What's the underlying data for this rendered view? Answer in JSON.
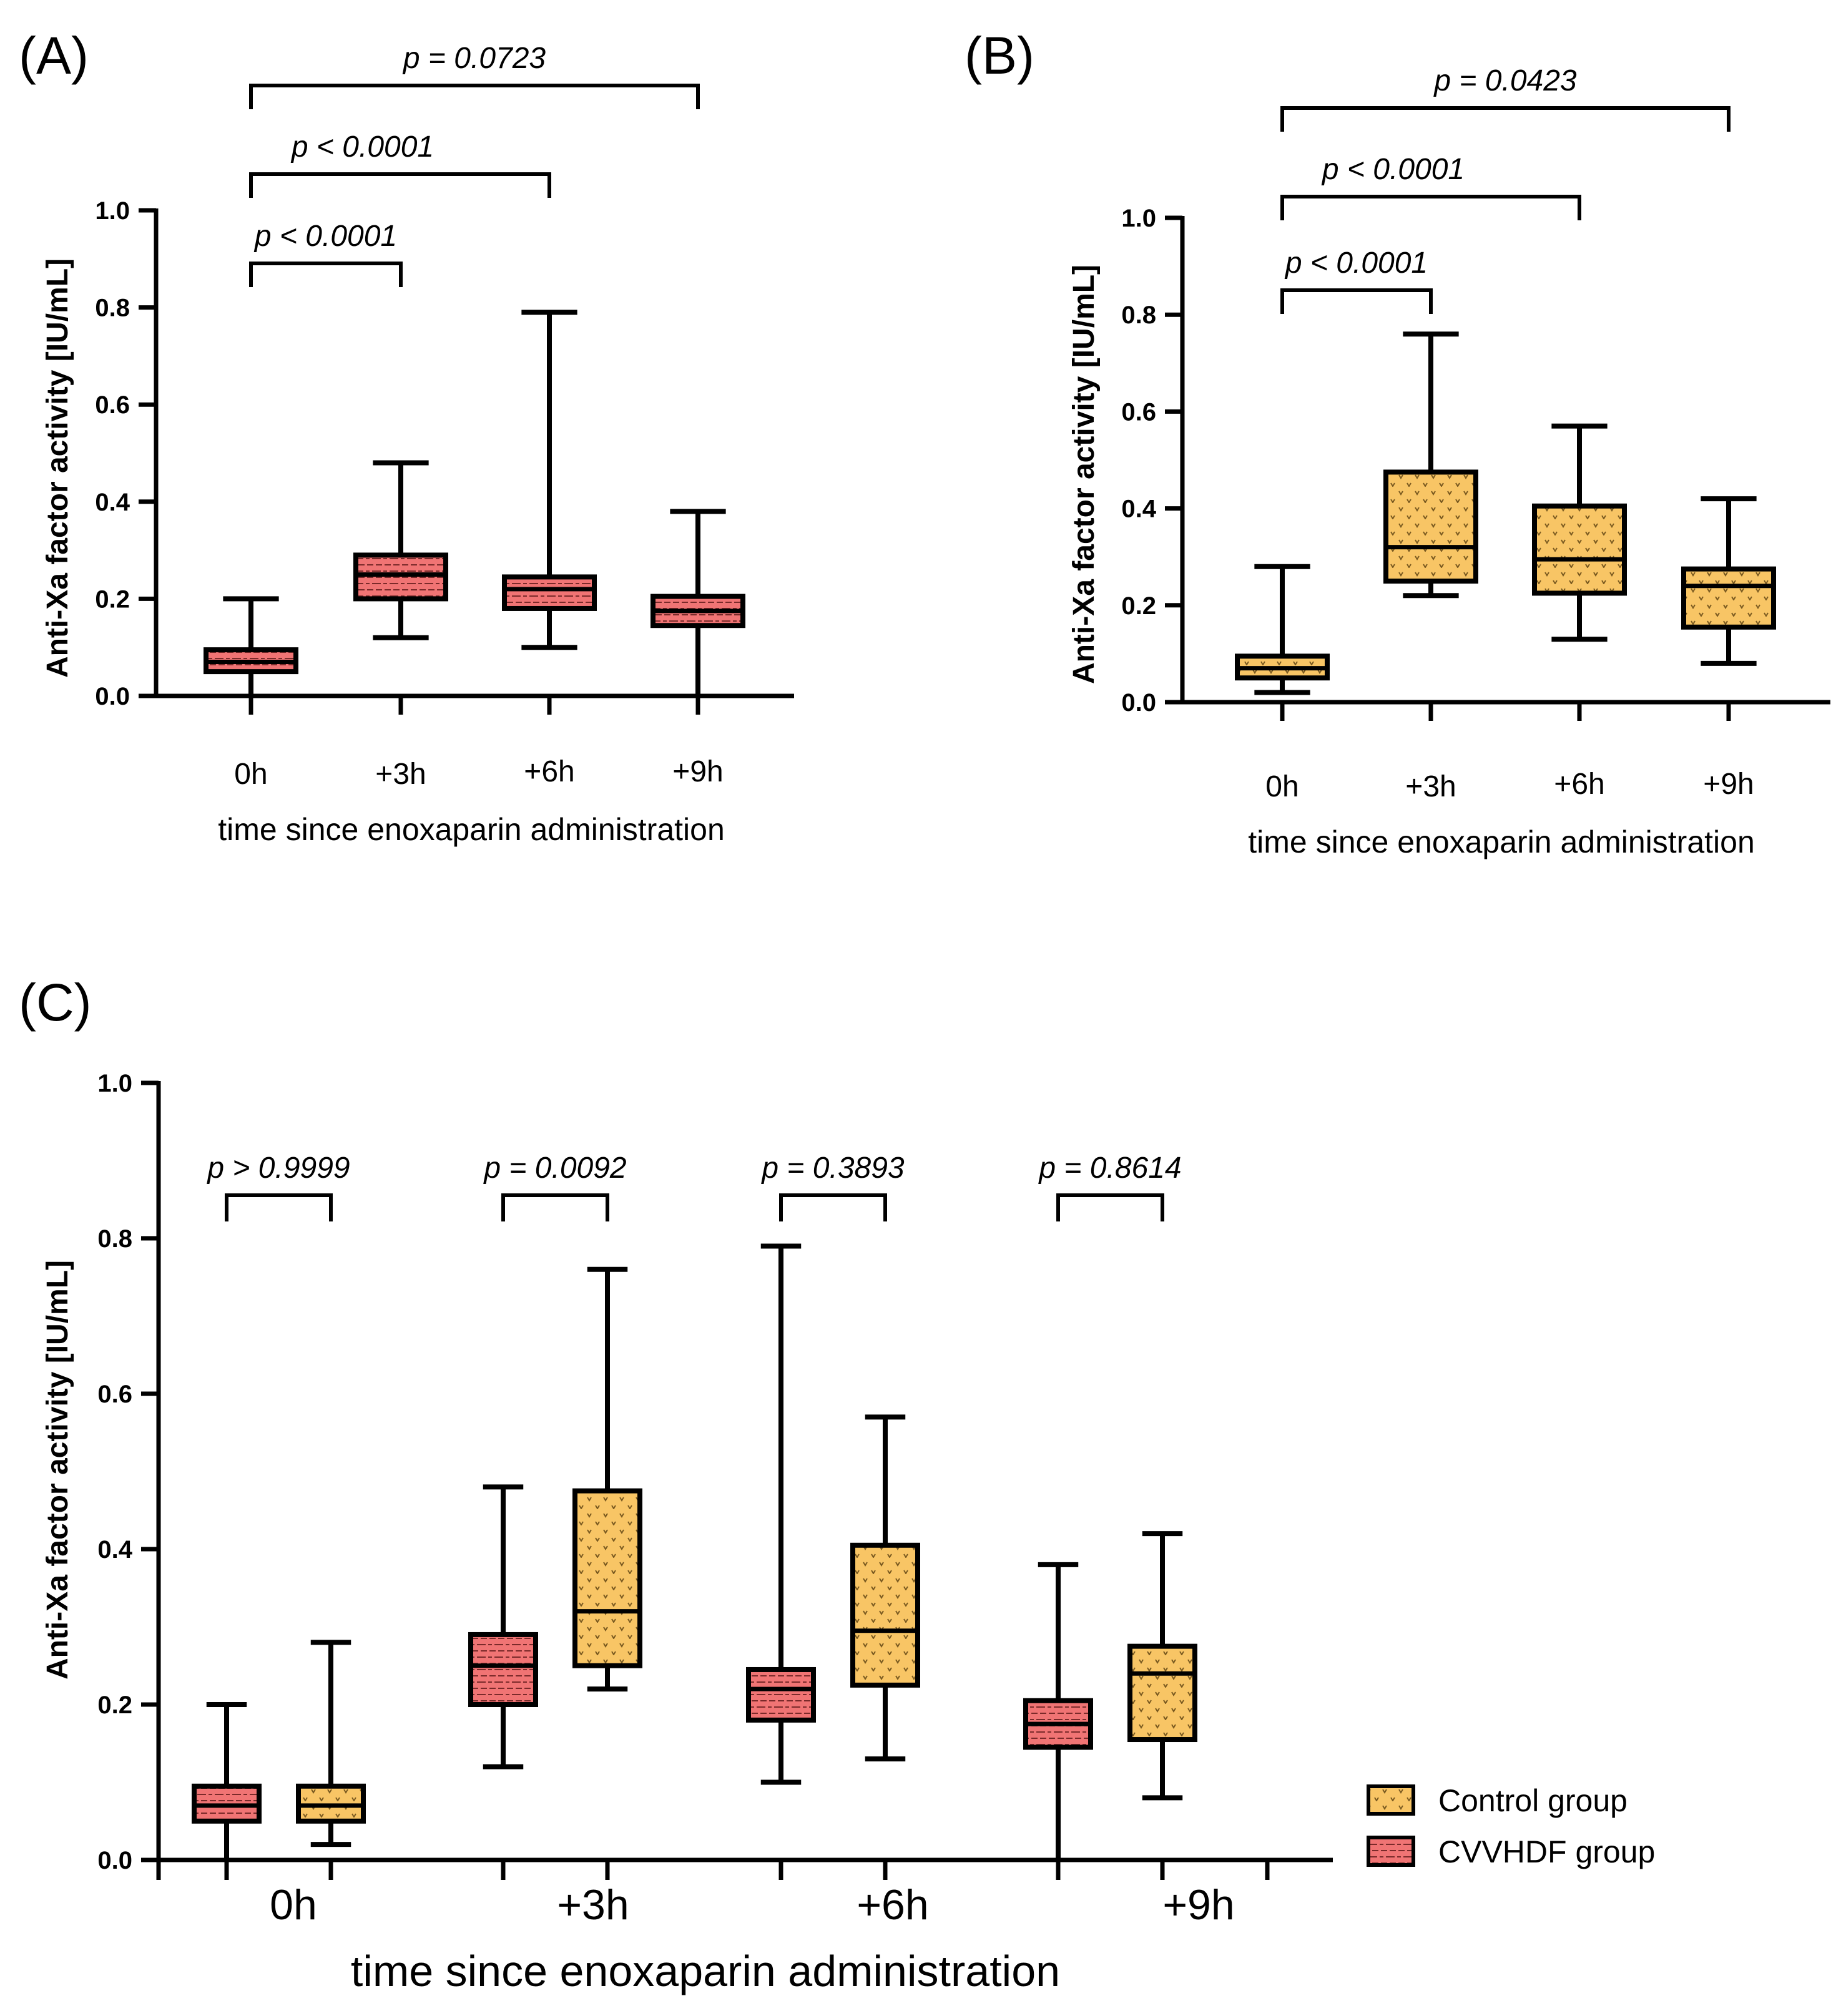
{
  "colors": {
    "control": "#F8C565",
    "control_dot": "#7a5a20",
    "cvvhdf": "#F07474",
    "cvvhdf_brick": "#7a2a2a",
    "axis": "#000000"
  },
  "chart_data": [
    {
      "type": "boxplot",
      "panel": "(A)",
      "group": "CVVHDF group",
      "categories": [
        "0h",
        "+3h",
        "+6h",
        "+9h"
      ],
      "xlabel": "time since enoxaparin administration",
      "ylabel": "Anti-Xa factor activity [IU/mL]",
      "ylim": [
        0,
        1.0
      ],
      "yticks": [
        "0.0",
        "0.2",
        "0.4",
        "0.6",
        "0.8",
        "1.0"
      ],
      "boxes": [
        {
          "min": 0.0,
          "q1": 0.05,
          "median": 0.07,
          "q3": 0.095,
          "max": 0.2
        },
        {
          "min": 0.12,
          "q1": 0.2,
          "median": 0.25,
          "q3": 0.29,
          "max": 0.48
        },
        {
          "min": 0.1,
          "q1": 0.18,
          "median": 0.22,
          "q3": 0.245,
          "max": 0.79
        },
        {
          "min": 0.0,
          "q1": 0.145,
          "median": 0.175,
          "q3": 0.205,
          "max": 0.38
        }
      ],
      "comparisons": [
        {
          "from": 0,
          "to": 1,
          "label": "p < 0.0001"
        },
        {
          "from": 0,
          "to": 2,
          "label": "p < 0.0001"
        },
        {
          "from": 0,
          "to": 3,
          "label": "p = 0.0723"
        }
      ]
    },
    {
      "type": "boxplot",
      "panel": "(B)",
      "group": "Control  group",
      "categories": [
        "0h",
        "+3h",
        "+6h",
        "+9h"
      ],
      "xlabel": "time since enoxaparin administration",
      "ylabel": "Anti-Xa factor activity [IU/mL]",
      "ylim": [
        0,
        1.0
      ],
      "yticks": [
        "0.0",
        "0.2",
        "0.4",
        "0.6",
        "0.8",
        "1.0"
      ],
      "boxes": [
        {
          "min": 0.02,
          "q1": 0.05,
          "median": 0.07,
          "q3": 0.095,
          "max": 0.28
        },
        {
          "min": 0.22,
          "q1": 0.25,
          "median": 0.32,
          "q3": 0.475,
          "max": 0.76
        },
        {
          "min": 0.13,
          "q1": 0.225,
          "median": 0.295,
          "q3": 0.405,
          "max": 0.57
        },
        {
          "min": 0.08,
          "q1": 0.155,
          "median": 0.24,
          "q3": 0.275,
          "max": 0.42
        }
      ],
      "comparisons": [
        {
          "from": 0,
          "to": 1,
          "label": "p < 0.0001"
        },
        {
          "from": 0,
          "to": 2,
          "label": "p < 0.0001"
        },
        {
          "from": 0,
          "to": 3,
          "label": "p = 0.0423"
        }
      ]
    },
    {
      "type": "boxplot",
      "panel": "(C)",
      "categories": [
        "0h",
        "+3h",
        "+6h",
        "+9h"
      ],
      "xlabel": "time since enoxaparin administration",
      "ylabel": "Anti-Xa factor activity [IU/mL]",
      "ylim": [
        0,
        1.0
      ],
      "yticks": [
        "0.0",
        "0.2",
        "0.4",
        "0.6",
        "0.8",
        "1.0"
      ],
      "legend": [
        "Control  group",
        "CVVHDF group"
      ],
      "legend_position": "bottom-right",
      "p_values": [
        "p > 0.9999",
        "p = 0.0092",
        "p = 0.3893",
        "p = 0.8614"
      ]
    }
  ]
}
